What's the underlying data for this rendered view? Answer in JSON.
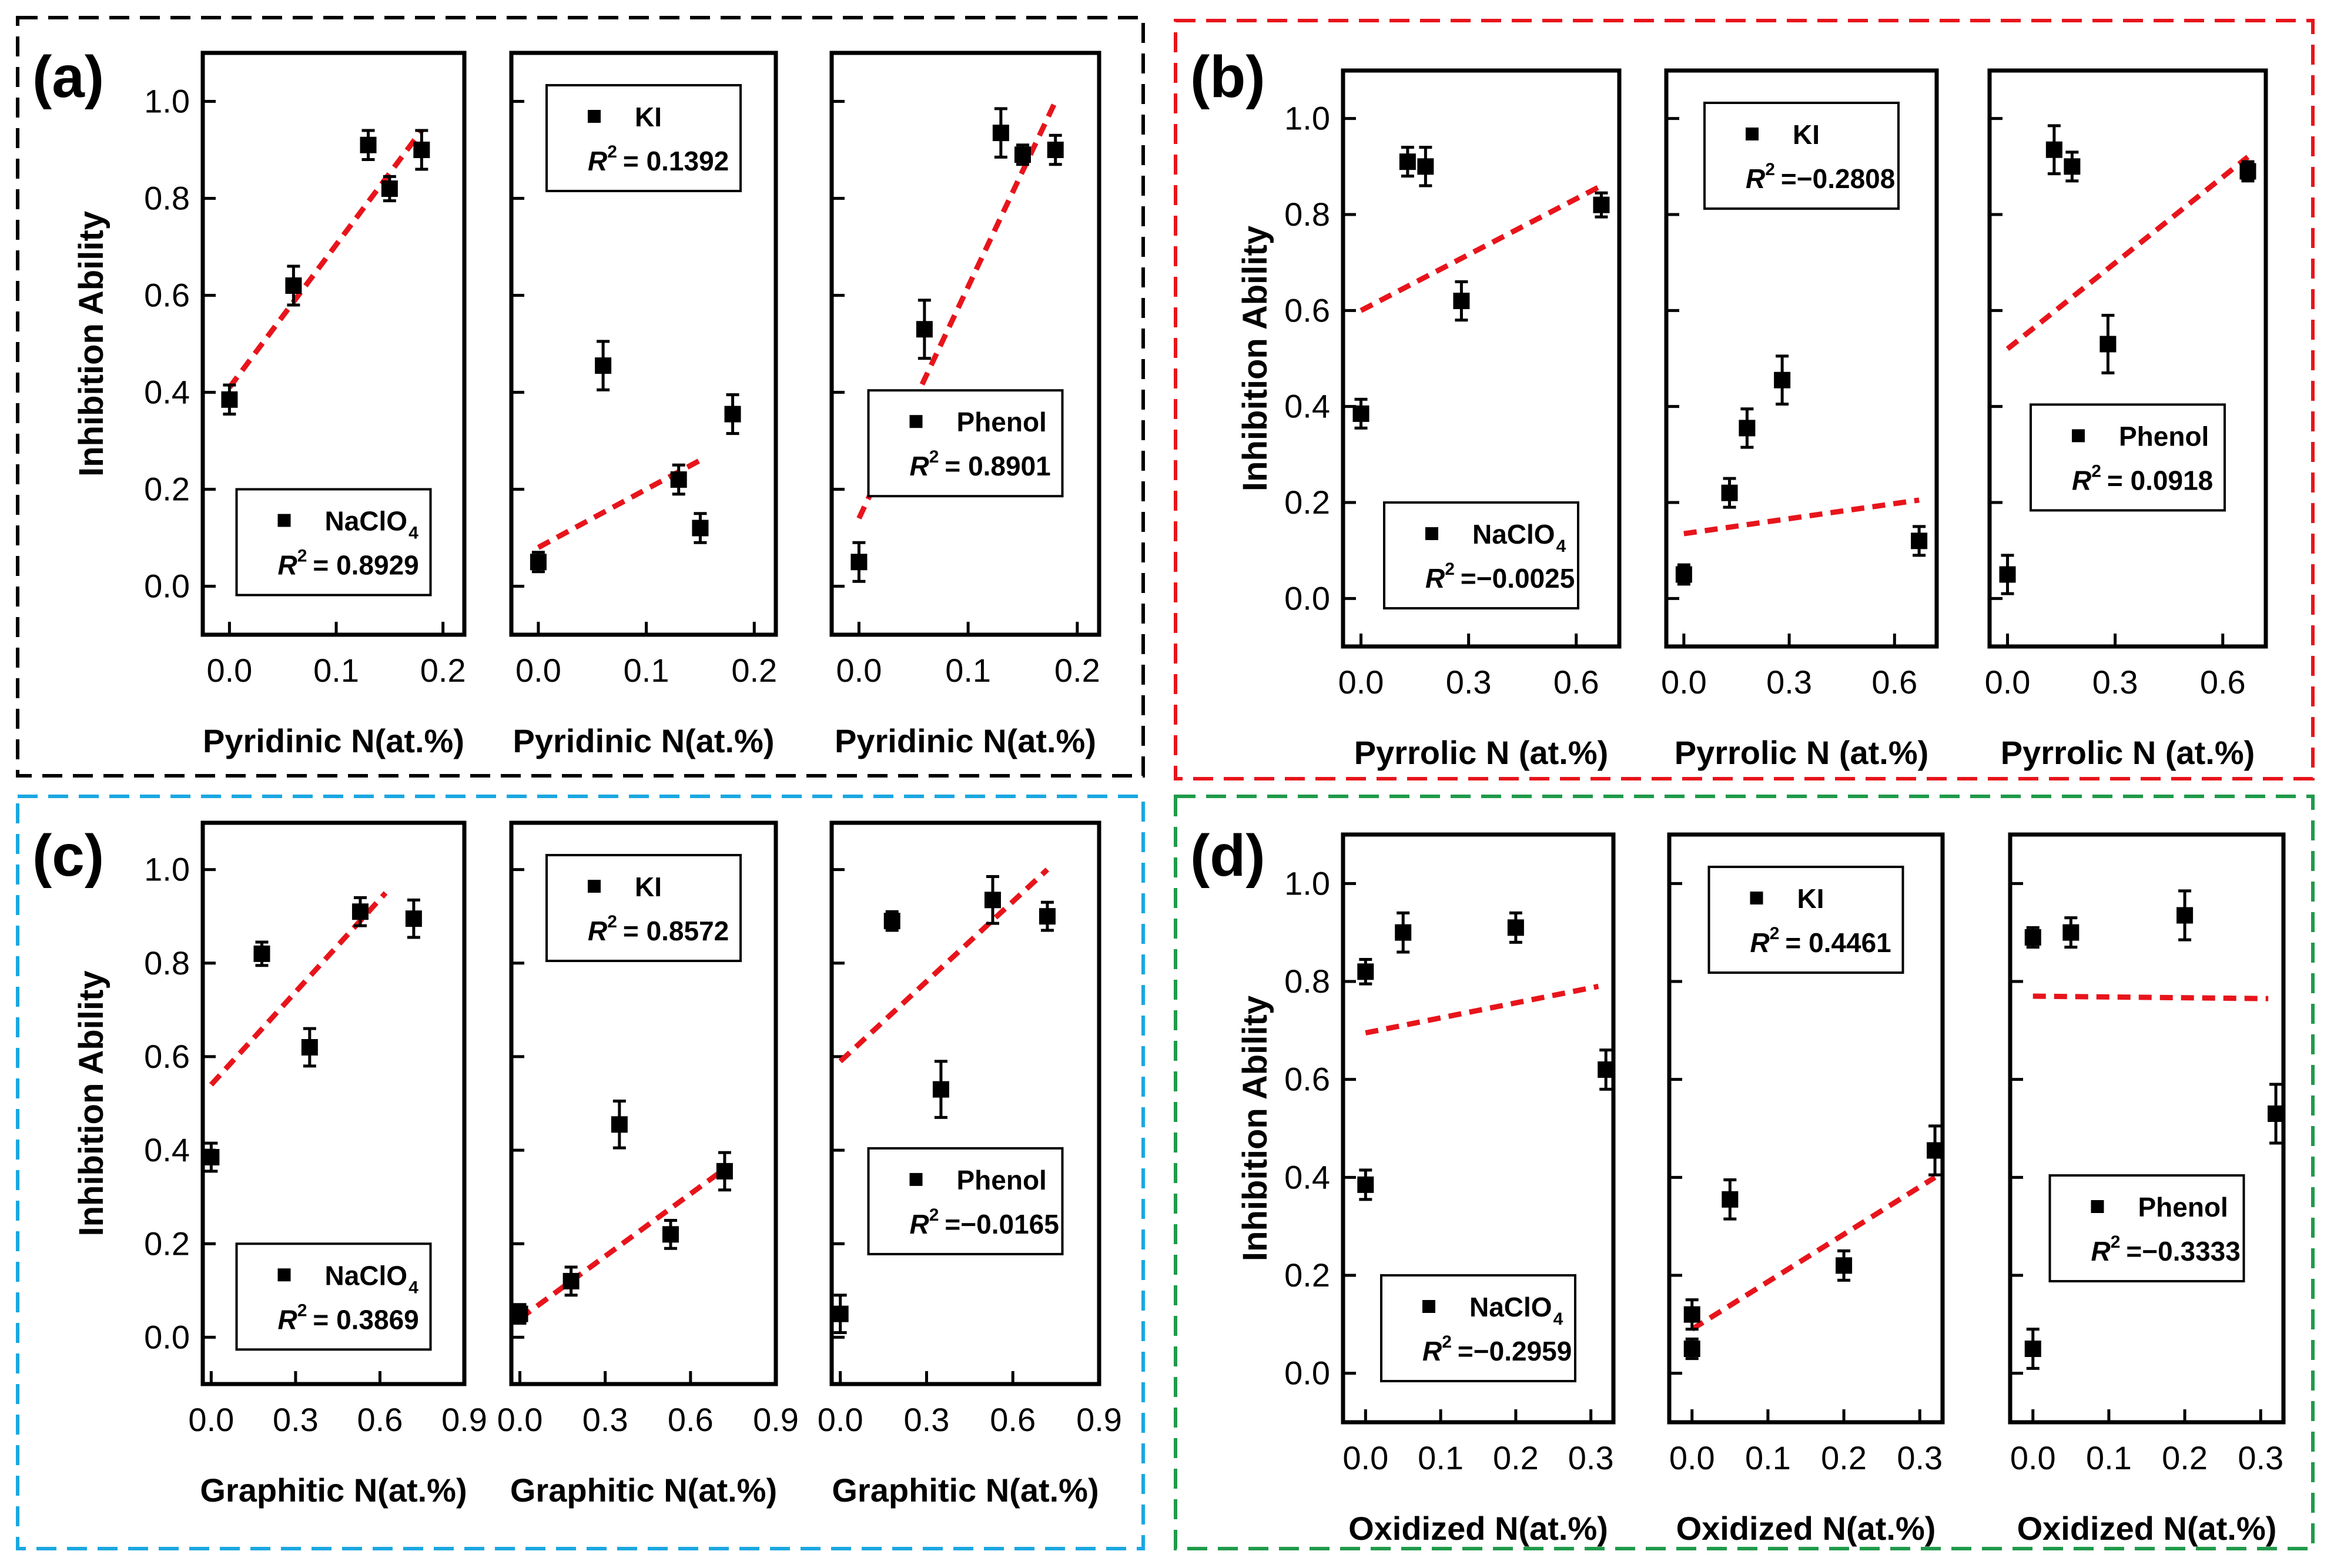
{
  "colors": {
    "fit_line": "#e8141b",
    "frame_a": "#000000",
    "frame_b": "#e8141b",
    "frame_c": "#1aa7e1",
    "frame_d": "#1f9a4a",
    "marker": "#000000"
  },
  "shared": {
    "ylabel": "Inhibition Ability",
    "ylim": [
      -0.1,
      1.1
    ],
    "yticks": [
      "0.0",
      "0.2",
      "0.4",
      "0.6",
      "0.8",
      "1.0"
    ],
    "marker": "filled-square"
  },
  "chart_data": [
    {
      "panel": "(a)",
      "subpanel": "NaClO4",
      "type": "scatter",
      "xlabel": "Pyridinic N(at.%)",
      "xticks": [
        "0.0",
        "0.1",
        "0.2"
      ],
      "xlim": [
        -0.025,
        0.22
      ],
      "points": [
        {
          "x": 0.0,
          "y": 0.385,
          "err": 0.03
        },
        {
          "x": 0.06,
          "y": 0.62,
          "err": 0.04
        },
        {
          "x": 0.13,
          "y": 0.91,
          "err": 0.03
        },
        {
          "x": 0.15,
          "y": 0.82,
          "err": 0.025
        },
        {
          "x": 0.18,
          "y": 0.9,
          "err": 0.04
        }
      ],
      "fit": {
        "x": [
          0.0,
          0.18
        ],
        "y": [
          0.41,
          0.94
        ]
      },
      "legend": {
        "label": "NaClO",
        "subscript": "4",
        "r2": "= 0.8929",
        "position": "bottom-center"
      }
    },
    {
      "panel": "(a)",
      "subpanel": "KI",
      "type": "scatter",
      "xlabel": "Pyridinic N(at.%)",
      "xticks": [
        "0.0",
        "0.1",
        "0.2"
      ],
      "xlim": [
        -0.025,
        0.22
      ],
      "points": [
        {
          "x": 0.0,
          "y": 0.05,
          "err": 0.02
        },
        {
          "x": 0.06,
          "y": 0.455,
          "err": 0.05
        },
        {
          "x": 0.13,
          "y": 0.22,
          "err": 0.03
        },
        {
          "x": 0.15,
          "y": 0.12,
          "err": 0.03
        },
        {
          "x": 0.18,
          "y": 0.355,
          "err": 0.04
        }
      ],
      "fit": {
        "x": [
          0.0,
          0.15
        ],
        "y": [
          0.08,
          0.26
        ]
      },
      "legend": {
        "label": "KI",
        "subscript": "",
        "r2": "= 0.1392",
        "position": "top-center"
      }
    },
    {
      "panel": "(a)",
      "subpanel": "Phenol",
      "type": "scatter",
      "xlabel": "Pyridinic N(at.%)",
      "xticks": [
        "0.0",
        "0.1",
        "0.2"
      ],
      "xlim": [
        -0.025,
        0.22
      ],
      "points": [
        {
          "x": 0.0,
          "y": 0.05,
          "err": 0.04
        },
        {
          "x": 0.06,
          "y": 0.53,
          "err": 0.06
        },
        {
          "x": 0.13,
          "y": 0.935,
          "err": 0.05
        },
        {
          "x": 0.15,
          "y": 0.89,
          "err": 0.02
        },
        {
          "x": 0.18,
          "y": 0.9,
          "err": 0.03
        }
      ],
      "fit": {
        "x": [
          0.0,
          0.18
        ],
        "y": [
          0.14,
          1.0
        ]
      },
      "legend": {
        "label": "Phenol",
        "subscript": "",
        "r2": "= 0.8901",
        "position": "middle-center"
      }
    },
    {
      "panel": "(b)",
      "subpanel": "NaClO4",
      "type": "scatter",
      "xlabel": "Pyrrolic N (at.%)",
      "xticks": [
        "0.0",
        "0.3",
        "0.6"
      ],
      "xlim": [
        -0.05,
        0.72
      ],
      "points": [
        {
          "x": 0.0,
          "y": 0.385,
          "err": 0.03
        },
        {
          "x": 0.13,
          "y": 0.91,
          "err": 0.03
        },
        {
          "x": 0.18,
          "y": 0.9,
          "err": 0.04
        },
        {
          "x": 0.28,
          "y": 0.62,
          "err": 0.04
        },
        {
          "x": 0.67,
          "y": 0.82,
          "err": 0.025
        }
      ],
      "fit": {
        "x": [
          0.0,
          0.67
        ],
        "y": [
          0.6,
          0.86
        ]
      },
      "legend": {
        "label": "NaClO",
        "subscript": "4",
        "r2": "=−0.0025",
        "position": "bottom-center"
      }
    },
    {
      "panel": "(b)",
      "subpanel": "KI",
      "type": "scatter",
      "xlabel": "Pyrrolic N (at.%)",
      "xticks": [
        "0.0",
        "0.3",
        "0.6"
      ],
      "xlim": [
        -0.05,
        0.72
      ],
      "points": [
        {
          "x": 0.0,
          "y": 0.05,
          "err": 0.02
        },
        {
          "x": 0.13,
          "y": 0.22,
          "err": 0.03
        },
        {
          "x": 0.18,
          "y": 0.355,
          "err": 0.04
        },
        {
          "x": 0.28,
          "y": 0.455,
          "err": 0.05
        },
        {
          "x": 0.67,
          "y": 0.12,
          "err": 0.03
        }
      ],
      "fit": {
        "x": [
          0.0,
          0.67
        ],
        "y": [
          0.135,
          0.205
        ]
      },
      "legend": {
        "label": "KI",
        "subscript": "",
        "r2": "=−0.2808",
        "position": "top-center"
      }
    },
    {
      "panel": "(b)",
      "subpanel": "Phenol",
      "type": "scatter",
      "xlabel": "Pyrrolic N (at.%)",
      "xticks": [
        "0.0",
        "0.3",
        "0.6"
      ],
      "xlim": [
        -0.05,
        0.72
      ],
      "points": [
        {
          "x": 0.0,
          "y": 0.05,
          "err": 0.04
        },
        {
          "x": 0.13,
          "y": 0.935,
          "err": 0.05
        },
        {
          "x": 0.18,
          "y": 0.9,
          "err": 0.03
        },
        {
          "x": 0.28,
          "y": 0.53,
          "err": 0.06
        },
        {
          "x": 0.67,
          "y": 0.89,
          "err": 0.02
        }
      ],
      "fit": {
        "x": [
          0.0,
          0.67
        ],
        "y": [
          0.52,
          0.92
        ]
      },
      "legend": {
        "label": "Phenol",
        "subscript": "",
        "r2": "= 0.0918",
        "position": "middle-center"
      }
    },
    {
      "panel": "(c)",
      "subpanel": "NaClO4",
      "type": "scatter",
      "xlabel": "Graphitic N(at.%)",
      "xticks": [
        "0.0",
        "0.3",
        "0.6",
        "0.9"
      ],
      "xlim": [
        -0.03,
        0.9
      ],
      "points": [
        {
          "x": 0.0,
          "y": 0.385,
          "err": 0.03
        },
        {
          "x": 0.18,
          "y": 0.82,
          "err": 0.025
        },
        {
          "x": 0.35,
          "y": 0.62,
          "err": 0.04
        },
        {
          "x": 0.53,
          "y": 0.91,
          "err": 0.03
        },
        {
          "x": 0.72,
          "y": 0.895,
          "err": 0.04
        }
      ],
      "fit": {
        "x": [
          0.0,
          0.62
        ],
        "y": [
          0.54,
          0.95
        ]
      },
      "legend": {
        "label": "NaClO",
        "subscript": "4",
        "r2": "= 0.3869",
        "position": "bottom-center"
      }
    },
    {
      "panel": "(c)",
      "subpanel": "KI",
      "type": "scatter",
      "xlabel": "Graphitic N(at.%)",
      "xticks": [
        "0.0",
        "0.3",
        "0.6",
        "0.9"
      ],
      "xlim": [
        -0.03,
        0.9
      ],
      "points": [
        {
          "x": 0.0,
          "y": 0.05,
          "err": 0.02
        },
        {
          "x": 0.18,
          "y": 0.12,
          "err": 0.03
        },
        {
          "x": 0.35,
          "y": 0.455,
          "err": 0.05
        },
        {
          "x": 0.53,
          "y": 0.22,
          "err": 0.03
        },
        {
          "x": 0.72,
          "y": 0.355,
          "err": 0.04
        }
      ],
      "fit": {
        "x": [
          0.0,
          0.72
        ],
        "y": [
          0.04,
          0.36
        ]
      },
      "legend": {
        "label": "KI",
        "subscript": "",
        "r2": "= 0.8572",
        "position": "top-center"
      }
    },
    {
      "panel": "(c)",
      "subpanel": "Phenol",
      "type": "scatter",
      "xlabel": "Graphitic N(at.%)",
      "xticks": [
        "0.0",
        "0.3",
        "0.6",
        "0.9"
      ],
      "xlim": [
        -0.03,
        0.9
      ],
      "points": [
        {
          "x": 0.0,
          "y": 0.05,
          "err": 0.04
        },
        {
          "x": 0.18,
          "y": 0.89,
          "err": 0.02
        },
        {
          "x": 0.35,
          "y": 0.53,
          "err": 0.06
        },
        {
          "x": 0.53,
          "y": 0.935,
          "err": 0.05
        },
        {
          "x": 0.72,
          "y": 0.9,
          "err": 0.03
        }
      ],
      "fit": {
        "x": [
          0.0,
          0.72
        ],
        "y": [
          0.59,
          1.0
        ]
      },
      "legend": {
        "label": "Phenol",
        "subscript": "",
        "r2": "=−0.0165",
        "position": "middle-center"
      }
    },
    {
      "panel": "(d)",
      "subpanel": "NaClO4",
      "type": "scatter",
      "xlabel": "Oxidized N(at.%)",
      "xticks": [
        "0.0",
        "0.1",
        "0.2",
        "0.3"
      ],
      "xlim": [
        -0.03,
        0.33
      ],
      "points": [
        {
          "x": 0.0,
          "y": 0.385,
          "err": 0.03
        },
        {
          "x": 0.0,
          "y": 0.82,
          "err": 0.025
        },
        {
          "x": 0.05,
          "y": 0.9,
          "err": 0.04
        },
        {
          "x": 0.2,
          "y": 0.91,
          "err": 0.03
        },
        {
          "x": 0.32,
          "y": 0.62,
          "err": 0.04
        }
      ],
      "fit": {
        "x": [
          0.0,
          0.31
        ],
        "y": [
          0.695,
          0.79
        ]
      },
      "legend": {
        "label": "NaClO",
        "subscript": "4",
        "r2": "=−0.2959",
        "position": "bottom-center"
      }
    },
    {
      "panel": "(d)",
      "subpanel": "KI",
      "type": "scatter",
      "xlabel": "Oxidized N(at.%)",
      "xticks": [
        "0.0",
        "0.1",
        "0.2",
        "0.3"
      ],
      "xlim": [
        -0.03,
        0.33
      ],
      "points": [
        {
          "x": 0.0,
          "y": 0.05,
          "err": 0.02
        },
        {
          "x": 0.0,
          "y": 0.12,
          "err": 0.03
        },
        {
          "x": 0.05,
          "y": 0.355,
          "err": 0.04
        },
        {
          "x": 0.2,
          "y": 0.22,
          "err": 0.03
        },
        {
          "x": 0.32,
          "y": 0.455,
          "err": 0.05
        }
      ],
      "fit": {
        "x": [
          0.0,
          0.32
        ],
        "y": [
          0.09,
          0.4
        ]
      },
      "legend": {
        "label": "KI",
        "subscript": "",
        "r2": "= 0.4461",
        "position": "top-center"
      }
    },
    {
      "panel": "(d)",
      "subpanel": "Phenol",
      "type": "scatter",
      "xlabel": "Oxidized N(at.%)",
      "xticks": [
        "0.0",
        "0.1",
        "0.2",
        "0.3"
      ],
      "xlim": [
        -0.03,
        0.33
      ],
      "points": [
        {
          "x": 0.0,
          "y": 0.05,
          "err": 0.04
        },
        {
          "x": 0.0,
          "y": 0.89,
          "err": 0.02
        },
        {
          "x": 0.05,
          "y": 0.9,
          "err": 0.03
        },
        {
          "x": 0.2,
          "y": 0.935,
          "err": 0.05
        },
        {
          "x": 0.32,
          "y": 0.53,
          "err": 0.06
        }
      ],
      "fit": {
        "x": [
          0.0,
          0.31
        ],
        "y": [
          0.77,
          0.765
        ]
      },
      "legend": {
        "label": "Phenol",
        "subscript": "",
        "r2": "=−0.3333",
        "position": "middle-center"
      }
    }
  ]
}
